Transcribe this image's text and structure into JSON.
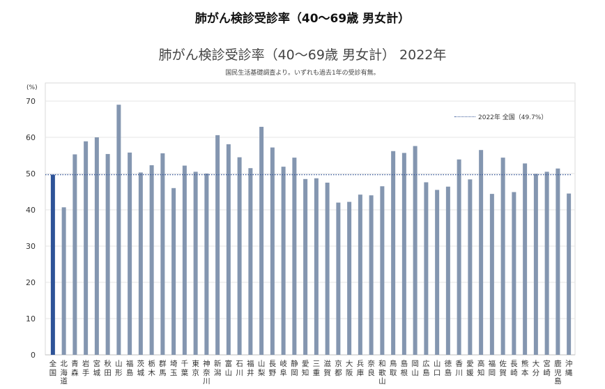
{
  "page_title": "肺がん検診受診率（40～69歳 男女計）",
  "chart_data": {
    "type": "bar",
    "title": "肺がん検診受診率（40～69歳 男女計） 2022年",
    "subtitle": "国民生活基礎調査より。いずれも過去1年の受診有無。",
    "ylabel": "(%)",
    "xlabel": "",
    "ylim": [
      0,
      75
    ],
    "yticks": [
      0,
      10,
      20,
      30,
      40,
      50,
      60,
      70
    ],
    "grid": true,
    "legend_position": "top-right",
    "reference_line": {
      "label": "2022年 全国（49.7%）",
      "value": 49.7,
      "color": "#3a5a9a"
    },
    "colors": {
      "highlight": "#2e5398",
      "bar": "#8496b0",
      "grid": "#e6e6e6"
    },
    "categories": [
      "全国",
      "北海道",
      "青森",
      "岩手",
      "宮城",
      "秋田",
      "山形",
      "福島",
      "茨城",
      "栃木",
      "群馬",
      "埼玉",
      "千葉",
      "東京",
      "神奈川",
      "新潟",
      "富山",
      "石川",
      "福井",
      "山梨",
      "長野",
      "岐阜",
      "静岡",
      "愛知",
      "三重",
      "滋賀",
      "京都",
      "大阪",
      "兵庫",
      "奈良",
      "和歌山",
      "鳥取",
      "島根",
      "岡山",
      "広島",
      "山口",
      "徳島",
      "香川",
      "愛媛",
      "高知",
      "福岡",
      "佐賀",
      "長崎",
      "熊本",
      "大分",
      "宮崎",
      "鹿児島",
      "沖縄"
    ],
    "values": [
      49.7,
      40.7,
      55.3,
      58.9,
      60.0,
      55.4,
      69.0,
      55.8,
      50.3,
      52.3,
      55.6,
      46.0,
      52.2,
      50.5,
      50.0,
      60.6,
      58.1,
      54.5,
      51.5,
      62.9,
      57.2,
      51.9,
      54.4,
      48.5,
      48.7,
      47.5,
      42.0,
      42.2,
      44.2,
      44.0,
      46.5,
      56.2,
      55.7,
      57.6,
      47.6,
      45.5,
      46.4,
      53.9,
      48.4,
      56.5,
      44.4,
      54.4,
      44.9,
      52.8,
      49.9,
      50.5,
      51.4,
      44.5
    ]
  }
}
